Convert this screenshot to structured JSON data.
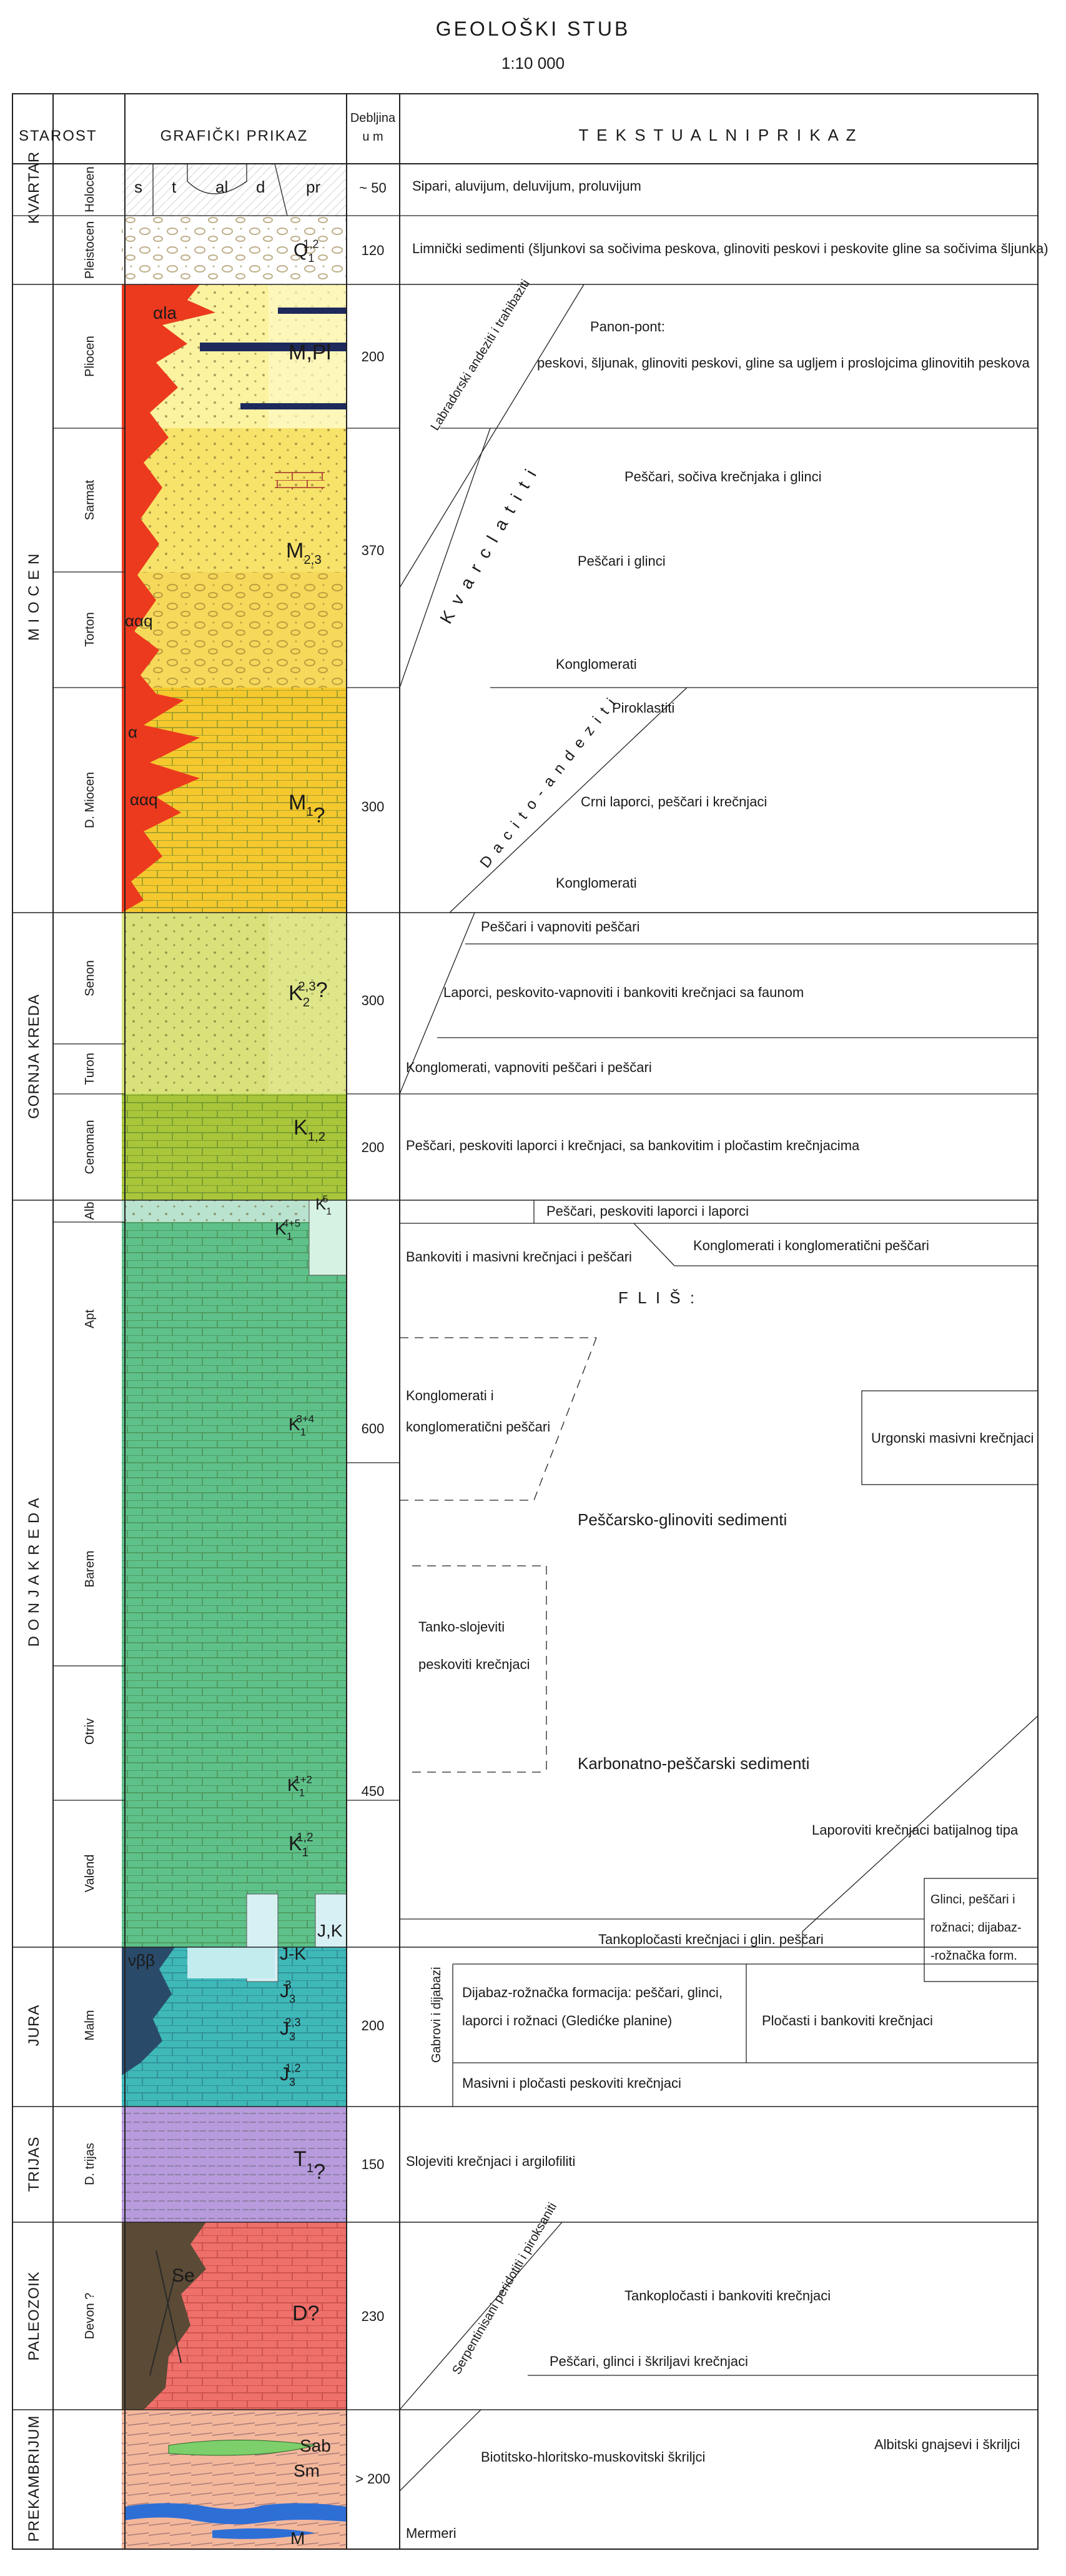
{
  "title": "GEOLOŠKI STUB",
  "scale": "1:10 000",
  "headers": {
    "age": "STAROST",
    "graphic": "GRAFIČKI PRIKAZ",
    "thickness": "Debljina u m",
    "text": "T E K S T U A L N I   P R I K A Z"
  },
  "periods": [
    "KVARTAR",
    "M I O C E N",
    "GORNJA KREDA",
    "D O N J A   K R E D A",
    "JURA",
    "TRIJAS",
    "PALEOZOIK",
    "PREKAMBRIJUM"
  ],
  "stages": [
    "Holocen",
    "Pleistocen",
    "Pliocen",
    "Sarmat",
    "Torton",
    "D. Miocen",
    "Senon",
    "Turon",
    "Cenoman",
    "Alb",
    "Apt",
    "Barem",
    "Otriv",
    "Valend",
    "Malm",
    "D. trijas",
    "Devon ?"
  ],
  "symbols": {
    "holocene": [
      "s",
      "t",
      "al",
      "d",
      "pr"
    ],
    "Q": "Q",
    "Q_sup": "1,2",
    "Q_sub": "1",
    "MPl": "M,Pl",
    "M23": "M",
    "M23_sub": "2,3",
    "M1": "M",
    "M1_sub": "1",
    "M1_q": "?",
    "K2": "K",
    "K2_sup": "2,3",
    "K2_sub": "2",
    "K2_q": "?",
    "K12": "K",
    "K12_sub": "1,2",
    "K145": "K",
    "K145_sup": "4+5",
    "K145_sub": "1",
    "K15": "K",
    "K15_sup": "5",
    "K15_sub": "1",
    "K134": "K",
    "K134_sup": "3+4",
    "K134_sub": "1",
    "K112": "K",
    "K112_sup": "1+2",
    "K112_sub": "1",
    "K1": "K",
    "K1_sup": "1,2",
    "K1_sub": "1",
    "JK": "J-K",
    "JK2": "J,K",
    "J3": "J",
    "J3_sup": "3",
    "J3_sub": "3",
    "J323": "J",
    "J323_sup": "2,3",
    "J323_sub": "3",
    "J312": "J",
    "J312_sup": "1,2",
    "J312_sub": "3",
    "T1": "T",
    "T1_sub": "1",
    "T1_q": "?",
    "D": "D?",
    "Se": "Se",
    "Sab": "Sab",
    "Sm": "Sm",
    "M": "M",
    "ala": "αla",
    "aaq": "ααq",
    "aaq2": "ααq",
    "a": "α",
    "vbb": "νββ"
  },
  "thickness": [
    "~ 50",
    "120",
    "200",
    "370",
    "300",
    "300",
    "200",
    "600",
    "450",
    "200",
    "150",
    "230",
    "> 200"
  ],
  "descriptions": {
    "holocen": "Sipari, aluvijum, deluvijum, proluvijum",
    "pleistocen": "Limnički sedimenti (šljunkovi sa sočivima peskova, glinoviti peskovi i peskovite gline sa sočivima šljunka)",
    "labrador": "Labradorski andeziti i trahibaziti",
    "panonpont": "Panon-pont:",
    "pliocen": "peskovi, šljunak, glinoviti peskovi, gline sa ugljem i proslojcima glinovitih peskova",
    "kvarclatiti": "K v a r c l a t i t i",
    "sarmat1": "Peščari, sočiva krečnjaka i glinci",
    "torton1": "Peščari i glinci",
    "konglo1": "Konglomerati",
    "dacito": "D a c i t o - a n d e z i t i",
    "piroklastiti": "Piroklastiti",
    "miocen1": "Crni laporci, peščari i krečnjaci",
    "konglo2": "Konglomerati",
    "senon1": "Peščari i vapnoviti peščari",
    "senon2": "Laporci, peskovito-vapnoviti i bankoviti krečnjaci sa faunom",
    "turon": "Konglomerati, vapnoviti peščari i peščari",
    "cenoman": "Peščari, peskoviti laporci i krečnjaci, sa bankovitim i pločastim krečnjacima",
    "alb1": "Peščari, peskoviti laporci i laporci",
    "alb2": "Bankoviti i masivni krečnjaci i peščari",
    "alb3": "Konglomerati i konglomeratični peščari",
    "flis": "F L I Š :",
    "konglo3a": "Konglomerati i",
    "konglo3b": "konglomeratični peščari",
    "urgon": "Urgonski masivni krečnjaci",
    "pescgl": "Peščarsko-glinoviti sedimenti",
    "tanko1": "Tanko-slojeviti",
    "tanko2": "peskoviti krečnjaci",
    "karbon": "Karbonatno-peščarski sedimenti",
    "batij": "Laporoviti krečnjaci batijalnog tipa",
    "glinci1": "Glinci, peščari i",
    "glinci2": "rožnaci; dijabaz-",
    "glinci3": "-rožnačka form.",
    "tankopl": "Tankopločasti krečnjaci i glin. peščari",
    "gabrovi": "Gabrovi i dijabazi",
    "dijab1": "Dijabaz-rožnačka formacija: peščari, glinci,",
    "dijab2": "laporci i rožnaci (Gledićke planine)",
    "plocasti": "Pločasti i bankoviti krečnjaci",
    "masivni": "Masivni i pločasti peskoviti krečnjaci",
    "trijas": "Slojeviti krečnjaci i argilofiliti",
    "serpent": "Serpentinisani peridotiti i piroksaniti",
    "tankopl2": "Tankopločasti i bankoviti krečnjaci",
    "pescglinci": "Peščari, glinci i škriljavi krečnjaci",
    "biotit": "Biotitsko-hloritsko-muskovitski škriljci",
    "albit": "Albitski gnajsevi i škriljci",
    "mermeri": "Mermeri"
  },
  "colors": {
    "quaternary": "#ffffff",
    "pliocene": "#fbf3a0",
    "sarmat": "#f7e36a",
    "torton": "#f6d95a",
    "dmiocene": "#f5c92e",
    "senon": "#d9e27a",
    "cenoman": "#a9c63a",
    "alb": "#b9e3cf",
    "lowercret": "#5ec18a",
    "jura": "#3fb8b8",
    "trias": "#b79bdc",
    "paleozoic": "#ef6f6a",
    "precambrian": "#f3b79c",
    "volcanic": "#ec3a1e",
    "gabbro": "#2a4a6a",
    "serpentinite": "#5a4a36",
    "marble": "#2e6fd6",
    "schist": "#7ccf6a",
    "coal": "#1e2a5c"
  }
}
